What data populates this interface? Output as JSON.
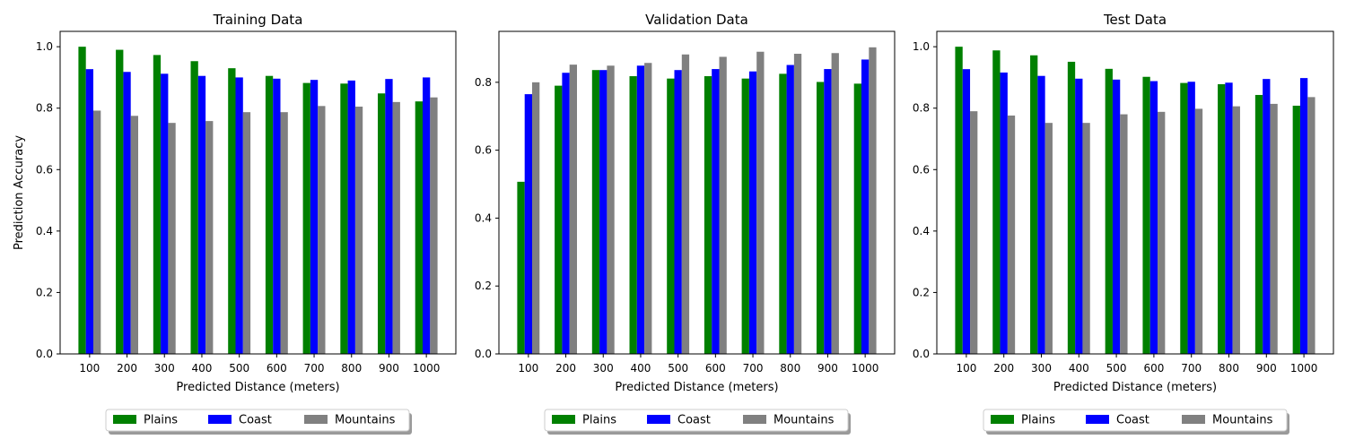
{
  "chart_data": [
    {
      "type": "bar",
      "title": "Training Data",
      "xlabel": "Predicted Distance (meters)",
      "ylabel": "Prediction Accuracy",
      "categories": [
        "100",
        "200",
        "300",
        "400",
        "500",
        "600",
        "700",
        "800",
        "900",
        "1000"
      ],
      "ylim": [
        0,
        1.05
      ],
      "yticks": [
        "0.0",
        "0.2",
        "0.4",
        "0.6",
        "0.8",
        "1.0"
      ],
      "grid": false,
      "legend_position": "bottom-center",
      "series": [
        {
          "name": "Plains",
          "color": "#008000",
          "values": [
            1.0,
            0.99,
            0.973,
            0.953,
            0.93,
            0.905,
            0.882,
            0.88,
            0.848,
            0.822
          ]
        },
        {
          "name": "Coast",
          "color": "#0000ff",
          "values": [
            0.927,
            0.918,
            0.912,
            0.905,
            0.9,
            0.896,
            0.892,
            0.89,
            0.895,
            0.9
          ]
        },
        {
          "name": "Mountains",
          "color": "#808080",
          "values": [
            0.792,
            0.775,
            0.752,
            0.758,
            0.787,
            0.787,
            0.807,
            0.805,
            0.82,
            0.835
          ]
        }
      ]
    },
    {
      "type": "bar",
      "title": "Validation Data",
      "xlabel": "Predicted Distance (meters)",
      "ylabel": "",
      "categories": [
        "100",
        "200",
        "300",
        "400",
        "500",
        "600",
        "700",
        "800",
        "900",
        "1000"
      ],
      "ylim": [
        0,
        0.95
      ],
      "yticks": [
        "0.0",
        "0.2",
        "0.4",
        "0.6",
        "0.8"
      ],
      "grid": false,
      "legend_position": "bottom-center",
      "series": [
        {
          "name": "Plains",
          "color": "#008000",
          "values": [
            0.507,
            0.79,
            0.836,
            0.818,
            0.811,
            0.818,
            0.811,
            0.825,
            0.801,
            0.796
          ]
        },
        {
          "name": "Coast",
          "color": "#0000ff",
          "values": [
            0.765,
            0.828,
            0.836,
            0.849,
            0.836,
            0.839,
            0.832,
            0.851,
            0.839,
            0.867
          ]
        },
        {
          "name": "Mountains",
          "color": "#808080",
          "values": [
            0.8,
            0.852,
            0.849,
            0.857,
            0.882,
            0.875,
            0.89,
            0.884,
            0.886,
            0.903
          ]
        }
      ]
    },
    {
      "type": "bar",
      "title": "Test Data",
      "xlabel": "Predicted Distance (meters)",
      "ylabel": "",
      "categories": [
        "100",
        "200",
        "300",
        "400",
        "500",
        "600",
        "700",
        "800",
        "900",
        "1000"
      ],
      "ylim": [
        0,
        1.05
      ],
      "yticks": [
        "0.0",
        "0.2",
        "0.4",
        "0.6",
        "0.8",
        "1.0"
      ],
      "grid": false,
      "legend_position": "bottom-center",
      "series": [
        {
          "name": "Plains",
          "color": "#008000",
          "values": [
            1.0,
            0.988,
            0.972,
            0.951,
            0.928,
            0.902,
            0.882,
            0.878,
            0.843,
            0.808
          ]
        },
        {
          "name": "Coast",
          "color": "#0000ff",
          "values": [
            0.927,
            0.916,
            0.905,
            0.896,
            0.893,
            0.888,
            0.886,
            0.883,
            0.895,
            0.898
          ]
        },
        {
          "name": "Mountains",
          "color": "#808080",
          "values": [
            0.79,
            0.776,
            0.752,
            0.752,
            0.78,
            0.788,
            0.798,
            0.806,
            0.814,
            0.836
          ]
        }
      ]
    }
  ]
}
